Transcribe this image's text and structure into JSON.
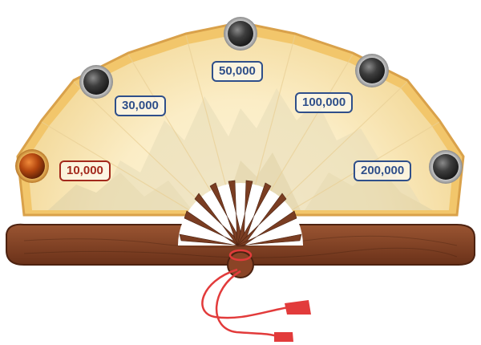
{
  "milestones": [
    {
      "label": "10,000",
      "state": "active"
    },
    {
      "label": "30,000",
      "state": "locked"
    },
    {
      "label": "50,000",
      "state": "locked"
    },
    {
      "label": "100,000",
      "state": "locked"
    },
    {
      "label": "200,000",
      "state": "locked"
    }
  ],
  "colors": {
    "label_locked": "#2f4f8a",
    "label_active": "#a3291c",
    "paper": "#fbe9bd",
    "fan_frame": "#f2c66b",
    "wood": "#7a3d22",
    "tassel": "#e23b3b",
    "orb_locked": "#3b3b3b",
    "orb_active": "#b04410"
  }
}
